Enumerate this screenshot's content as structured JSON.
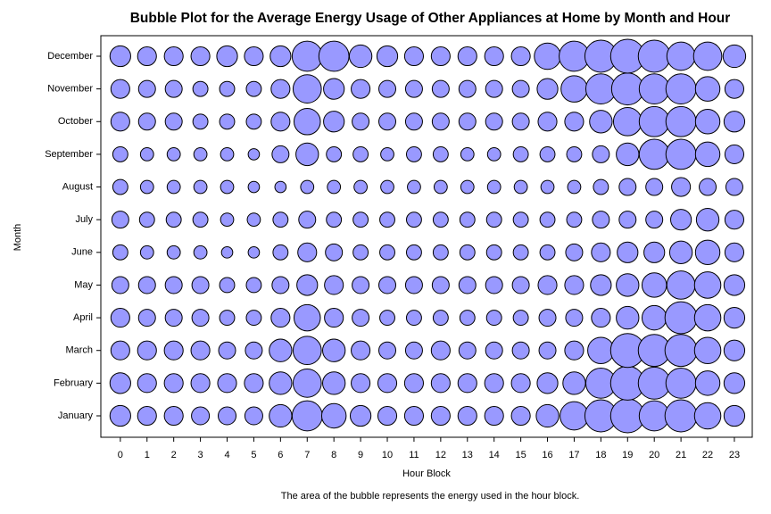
{
  "chart_data": {
    "type": "bubble",
    "title": "Bubble Plot for the Average Energy Usage of Other Appliances at Home by Month and Hour",
    "xlabel": "Hour Block",
    "ylabel": "Month",
    "caption": "The area of the bubble represents the energy used in the hour block.",
    "x": [
      0,
      1,
      2,
      3,
      4,
      5,
      6,
      7,
      8,
      9,
      10,
      11,
      12,
      13,
      14,
      15,
      16,
      17,
      18,
      19,
      20,
      21,
      22,
      23
    ],
    "categories": [
      "January",
      "February",
      "March",
      "April",
      "May",
      "June",
      "July",
      "August",
      "September",
      "October",
      "November",
      "December"
    ],
    "sizes": [
      [
        121,
        100,
        100,
        90,
        90,
        90,
        144,
        256,
        169,
        121,
        100,
        100,
        100,
        100,
        100,
        100,
        144,
        225,
        289,
        324,
        256,
        289,
        196,
        121
      ],
      [
        121,
        100,
        100,
        100,
        100,
        100,
        144,
        225,
        144,
        100,
        100,
        100,
        100,
        100,
        100,
        100,
        121,
        144,
        256,
        324,
        289,
        256,
        169,
        121
      ],
      [
        100,
        100,
        100,
        100,
        81,
        81,
        144,
        225,
        144,
        100,
        81,
        81,
        100,
        81,
        81,
        81,
        81,
        100,
        196,
        324,
        289,
        289,
        196,
        121
      ],
      [
        100,
        81,
        81,
        81,
        64,
        64,
        100,
        196,
        100,
        81,
        64,
        64,
        64,
        64,
        64,
        64,
        81,
        81,
        100,
        144,
        169,
        289,
        196,
        121
      ],
      [
        81,
        81,
        81,
        81,
        64,
        64,
        81,
        121,
        100,
        81,
        81,
        81,
        81,
        81,
        81,
        81,
        100,
        100,
        121,
        144,
        169,
        225,
        196,
        121
      ],
      [
        64,
        49,
        49,
        49,
        36,
        36,
        64,
        100,
        81,
        64,
        64,
        64,
        64,
        64,
        64,
        64,
        64,
        81,
        100,
        121,
        121,
        144,
        169,
        100
      ],
      [
        81,
        64,
        64,
        64,
        49,
        49,
        64,
        81,
        64,
        64,
        64,
        64,
        64,
        64,
        64,
        64,
        64,
        64,
        81,
        81,
        81,
        121,
        144,
        100
      ],
      [
        64,
        49,
        49,
        49,
        49,
        36,
        36,
        49,
        49,
        49,
        49,
        49,
        49,
        49,
        49,
        49,
        49,
        49,
        64,
        81,
        81,
        100,
        81,
        81
      ],
      [
        64,
        49,
        49,
        49,
        49,
        36,
        81,
        144,
        64,
        64,
        49,
        64,
        64,
        49,
        49,
        64,
        64,
        64,
        81,
        144,
        256,
        256,
        169,
        100
      ],
      [
        100,
        81,
        81,
        64,
        64,
        64,
        100,
        196,
        121,
        81,
        81,
        81,
        81,
        81,
        81,
        81,
        100,
        100,
        144,
        225,
        256,
        256,
        169,
        121
      ],
      [
        100,
        81,
        81,
        64,
        64,
        64,
        100,
        225,
        121,
        100,
        81,
        81,
        81,
        81,
        81,
        81,
        121,
        196,
        256,
        289,
        256,
        256,
        169,
        100
      ],
      [
        121,
        100,
        100,
        100,
        121,
        100,
        121,
        256,
        256,
        144,
        121,
        100,
        100,
        100,
        100,
        100,
        196,
        256,
        289,
        324,
        289,
        225,
        225,
        144
      ]
    ],
    "color": "#9999ff",
    "xlim": [
      -0.73,
      23.67
    ],
    "xticks": [
      0,
      1,
      2,
      3,
      4,
      5,
      6,
      7,
      8,
      9,
      10,
      11,
      12,
      13,
      14,
      15,
      16,
      17,
      18,
      19,
      20,
      21,
      22,
      23
    ]
  }
}
